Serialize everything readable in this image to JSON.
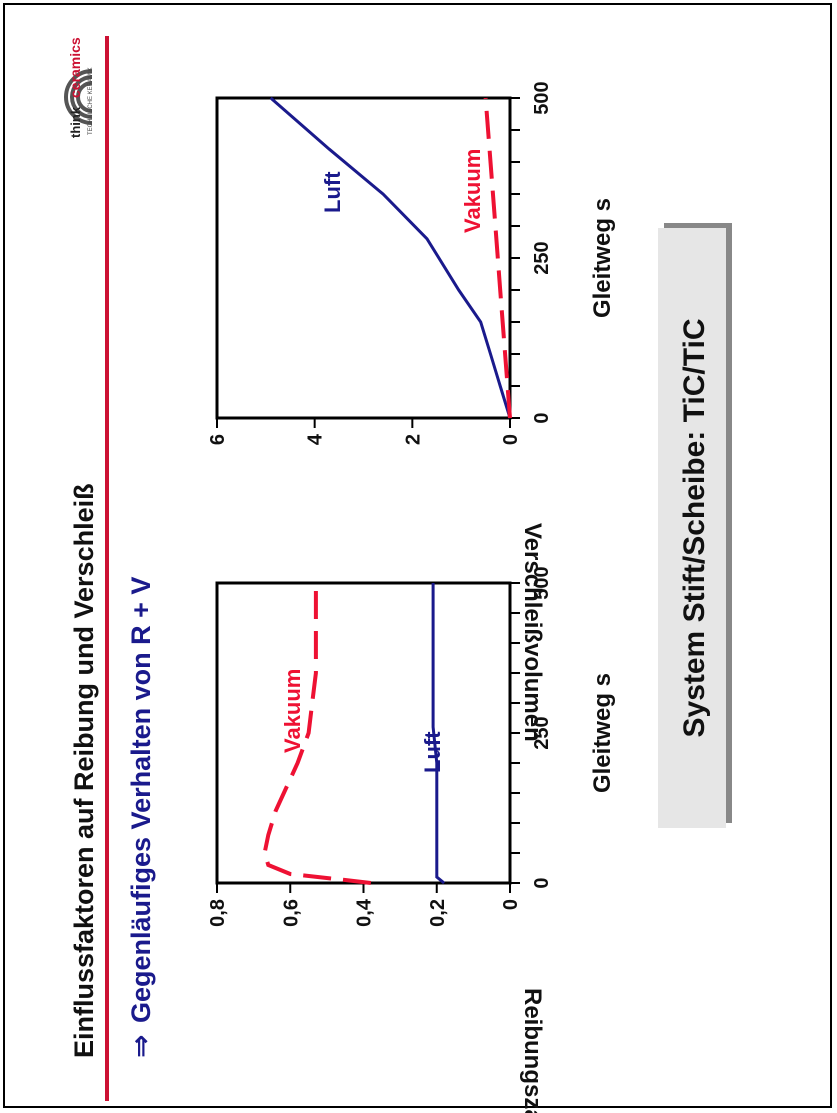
{
  "slide": {
    "title": "Einflussfaktoren auf Reibung und Verschleiß",
    "subtitle_arrow": "⇒",
    "subtitle": "Gegenläufiges Verhalten von R + V",
    "system_label": "System Stift/Scheibe: TiC/TiC"
  },
  "logo": {
    "think": "think",
    "ceramics": "ceramics",
    "tagline": "TECHNISCHE KERAMIK"
  },
  "colors": {
    "accent_red": "#cc1133",
    "luft_blue": "#1a1a8c",
    "vakuum_red": "#ee1133",
    "box_fill": "#e6e6e6",
    "box_shadow": "#888888"
  },
  "chart_data": [
    {
      "type": "line",
      "ylabel": "Reibungszahl",
      "xlabel": "Gleitweg s",
      "xlim": [
        0,
        500
      ],
      "ylim": [
        0,
        0.8
      ],
      "x_ticks": [
        "0",
        "250",
        "500"
      ],
      "y_ticks": [
        "0",
        "0,2",
        "0,4",
        "0,6",
        "0,8"
      ],
      "series": [
        {
          "name": "Luft",
          "color": "#1a1a8c",
          "dash": "solid",
          "x": [
            0,
            10,
            30,
            100,
            200,
            260,
            300,
            400,
            500
          ],
          "y": [
            0.18,
            0.2,
            0.2,
            0.2,
            0.2,
            0.21,
            0.21,
            0.21,
            0.21
          ]
        },
        {
          "name": "Vakuum",
          "color": "#ee1133",
          "dash": "dashed",
          "x": [
            0,
            5,
            15,
            30,
            50,
            80,
            120,
            200,
            250,
            300,
            350,
            400,
            500
          ],
          "y": [
            0.38,
            0.45,
            0.6,
            0.66,
            0.67,
            0.66,
            0.64,
            0.58,
            0.55,
            0.54,
            0.53,
            0.53,
            0.53
          ]
        }
      ]
    },
    {
      "type": "line",
      "ylabel": "Verschleißvolumen",
      "xlabel": "Gleitweg s",
      "xlim": [
        0,
        500
      ],
      "ylim": [
        0,
        6
      ],
      "x_ticks": [
        "0",
        "250",
        "500"
      ],
      "y_ticks": [
        "0",
        "2",
        "4",
        "6"
      ],
      "series": [
        {
          "name": "Luft",
          "color": "#1a1a8c",
          "dash": "solid",
          "x": [
            0,
            50,
            100,
            150,
            200,
            280,
            350,
            420,
            500
          ],
          "y": [
            0,
            0.2,
            0.4,
            0.6,
            1.05,
            1.7,
            2.6,
            3.7,
            4.9
          ]
        },
        {
          "name": "Vakuum",
          "color": "#ee1133",
          "dash": "dashed",
          "x": [
            0,
            100,
            200,
            300,
            400,
            500
          ],
          "y": [
            0,
            0.1,
            0.2,
            0.3,
            0.4,
            0.5
          ]
        }
      ]
    }
  ]
}
